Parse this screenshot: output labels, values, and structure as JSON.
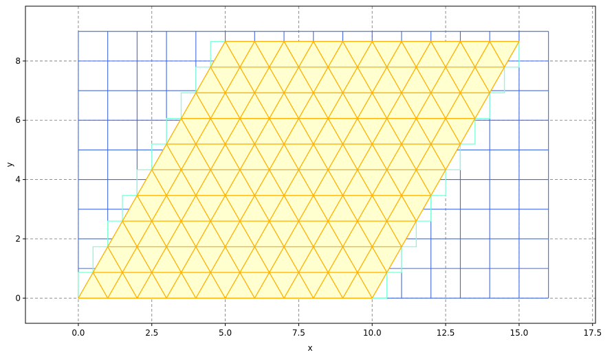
{
  "chart_data": {
    "type": "mesh",
    "title": "",
    "xlabel": "x",
    "ylabel": "y",
    "xlim": [
      -1.8,
      17.6
    ],
    "ylim": [
      -0.85,
      9.85
    ],
    "x_ticks": [
      0.0,
      2.5,
      5.0,
      7.5,
      10.0,
      12.5,
      15.0,
      17.5
    ],
    "x_tick_labels": [
      "0.0",
      "2.5",
      "5.0",
      "7.5",
      "10.0",
      "12.5",
      "15.0",
      "17.5"
    ],
    "y_ticks": [
      0,
      2,
      4,
      6,
      8
    ],
    "y_tick_labels": [
      "0",
      "2",
      "4",
      "6",
      "8"
    ],
    "grid": true,
    "grid_style": "dashed",
    "blue_grid": {
      "color": "#4169e1",
      "x_range": [
        0,
        16
      ],
      "y_range": [
        0,
        9
      ],
      "cell_size": 1
    },
    "green_staircase": {
      "color": "#7fffd4",
      "step_height": 0.866,
      "step_shift": 0.5,
      "rows": 10
    },
    "triangle_mesh": {
      "edge_color": "#ffb000",
      "fill_color": "#ffffd0",
      "origin": [
        0,
        0
      ],
      "a1": [
        1,
        0
      ],
      "a2": [
        0.5,
        0.866
      ],
      "n1": 10,
      "n2": 10
    }
  }
}
